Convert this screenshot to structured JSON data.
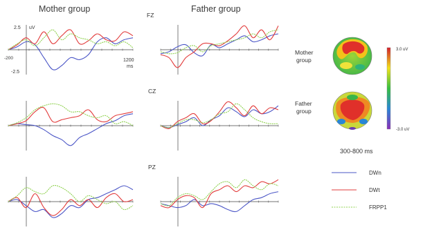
{
  "headers": {
    "mother": "Mother group",
    "father": "Father group"
  },
  "axis": {
    "y_top_label": "2.5",
    "y_unit": "uV",
    "y_bottom_label": "-2.5",
    "x_start_label": "-200",
    "x_end_label": "1200",
    "x_unit": "ms"
  },
  "electrodes": [
    "FZ",
    "CZ",
    "PZ"
  ],
  "topomaps": {
    "mother_label": [
      "Mother",
      "group"
    ],
    "father_label": [
      "Father",
      "group"
    ],
    "colorbar_top": "3.0 uV",
    "colorbar_bottom": "-3.0 uV",
    "time_window": "300-800 ms"
  },
  "colors": {
    "DWn": "#4a55c6",
    "DWt": "#e23b3b",
    "FRPP1": "#8fd14f"
  },
  "chart_data": {
    "type": "line",
    "x": [
      -200,
      -100,
      0,
      100,
      200,
      300,
      400,
      500,
      600,
      700,
      800,
      900,
      1000,
      1100,
      1200
    ],
    "xlabel": "ms",
    "ylabel": "uV",
    "xlim": [
      -200,
      1200
    ],
    "ylim": [
      -2.5,
      2.5
    ],
    "legend": [
      "DWn",
      "DWt",
      "FRPP1"
    ],
    "panels": [
      {
        "group": "Mother group",
        "electrode": "FZ",
        "series": [
          {
            "name": "DWn",
            "values": [
              0.0,
              0.3,
              0.8,
              0.5,
              -0.8,
              -2.0,
              -1.6,
              -0.8,
              -1.0,
              -0.5,
              0.8,
              1.2,
              0.6,
              1.0,
              1.2
            ]
          },
          {
            "name": "DWt",
            "values": [
              0.0,
              0.5,
              1.2,
              0.6,
              1.8,
              0.6,
              1.4,
              2.0,
              0.6,
              0.9,
              1.6,
              1.0,
              0.9,
              1.8,
              1.4
            ]
          },
          {
            "name": "FRPP1",
            "values": [
              0.0,
              0.6,
              1.0,
              0.4,
              1.2,
              2.0,
              1.0,
              1.6,
              1.2,
              1.0,
              0.6,
              0.8,
              0.4,
              0.8,
              0.2
            ]
          }
        ]
      },
      {
        "group": "Father group",
        "electrode": "FZ",
        "series": [
          {
            "name": "DWn",
            "values": [
              -0.4,
              -0.2,
              0.3,
              0.5,
              -0.3,
              -0.6,
              0.5,
              0.2,
              0.6,
              1.0,
              1.4,
              0.8,
              1.0,
              1.4,
              1.6
            ]
          },
          {
            "name": "DWt",
            "values": [
              -0.5,
              -0.8,
              -1.8,
              -0.8,
              -0.2,
              0.6,
              0.6,
              0.4,
              0.9,
              1.6,
              2.4,
              1.2,
              2.0,
              1.0,
              2.4
            ]
          },
          {
            "name": "FRPP1",
            "values": [
              -0.2,
              -0.4,
              -0.3,
              0.2,
              0.4,
              -0.2,
              0.4,
              0.6,
              0.8,
              1.0,
              1.2,
              1.6,
              1.2,
              1.8,
              2.0
            ]
          }
        ]
      },
      {
        "group": "Mother group",
        "electrode": "CZ",
        "series": [
          {
            "name": "DWn",
            "values": [
              0.0,
              0.2,
              0.1,
              0.0,
              -0.4,
              -1.0,
              -1.4,
              -2.0,
              -1.2,
              -0.8,
              -0.3,
              0.2,
              0.5,
              1.0,
              1.2
            ]
          },
          {
            "name": "DWt",
            "values": [
              0.0,
              0.2,
              0.5,
              1.4,
              1.8,
              0.4,
              0.6,
              0.8,
              1.0,
              1.6,
              0.6,
              0.4,
              1.0,
              1.2,
              1.4
            ]
          },
          {
            "name": "FRPP1",
            "values": [
              0.0,
              0.3,
              0.8,
              1.6,
              2.0,
              2.2,
              2.0,
              1.4,
              1.4,
              1.0,
              0.8,
              1.0,
              0.2,
              0.4,
              0.0
            ]
          }
        ]
      },
      {
        "group": "Father group",
        "electrode": "CZ",
        "series": [
          {
            "name": "DWn",
            "values": [
              0.0,
              -0.2,
              0.1,
              0.4,
              0.8,
              0.0,
              0.6,
              1.0,
              1.8,
              1.4,
              0.9,
              1.6,
              1.2,
              1.4,
              2.0
            ]
          },
          {
            "name": "DWt",
            "values": [
              0.0,
              -0.3,
              0.4,
              0.8,
              1.2,
              0.2,
              0.5,
              1.4,
              2.4,
              1.8,
              1.0,
              2.0,
              1.2,
              1.8,
              1.6
            ]
          },
          {
            "name": "FRPP1",
            "values": [
              0.0,
              -0.2,
              0.2,
              0.6,
              0.6,
              0.3,
              0.6,
              1.2,
              1.4,
              2.2,
              1.6,
              0.8,
              0.4,
              0.2,
              0.2
            ]
          }
        ]
      },
      {
        "group": "Mother group",
        "electrode": "PZ",
        "series": [
          {
            "name": "DWn",
            "values": [
              0.0,
              0.2,
              -0.4,
              -1.0,
              -0.8,
              -1.6,
              -1.2,
              -0.4,
              -0.6,
              0.2,
              0.4,
              0.8,
              1.2,
              1.6,
              1.2
            ]
          },
          {
            "name": "DWt",
            "values": [
              0.0,
              0.4,
              -0.6,
              0.8,
              -0.6,
              -1.4,
              -0.8,
              0.2,
              -0.4,
              0.2,
              -0.6,
              0.4,
              0.8,
              0.0,
              0.2
            ]
          },
          {
            "name": "FRPP1",
            "values": [
              0.0,
              0.6,
              1.4,
              1.0,
              0.8,
              1.6,
              1.4,
              0.8,
              0.0,
              0.6,
              0.2,
              -0.2,
              0.0,
              -0.8,
              -0.4
            ]
          }
        ]
      },
      {
        "group": "Father group",
        "electrode": "PZ",
        "series": [
          {
            "name": "DWn",
            "values": [
              -0.2,
              -0.4,
              -0.6,
              -0.4,
              0.2,
              -0.4,
              -0.2,
              -0.4,
              -0.8,
              -1.0,
              -0.4,
              0.2,
              0.4,
              0.8,
              1.0
            ]
          },
          {
            "name": "DWt",
            "values": [
              -0.4,
              -0.6,
              0.2,
              0.6,
              0.4,
              -0.6,
              0.8,
              1.2,
              1.6,
              1.0,
              1.6,
              1.4,
              2.0,
              1.8,
              2.2
            ]
          },
          {
            "name": "FRPP1",
            "values": [
              -0.2,
              -0.4,
              0.4,
              0.8,
              0.6,
              0.2,
              1.0,
              1.8,
              2.0,
              1.4,
              2.2,
              1.6,
              1.2,
              1.8,
              1.6
            ]
          }
        ]
      }
    ]
  }
}
